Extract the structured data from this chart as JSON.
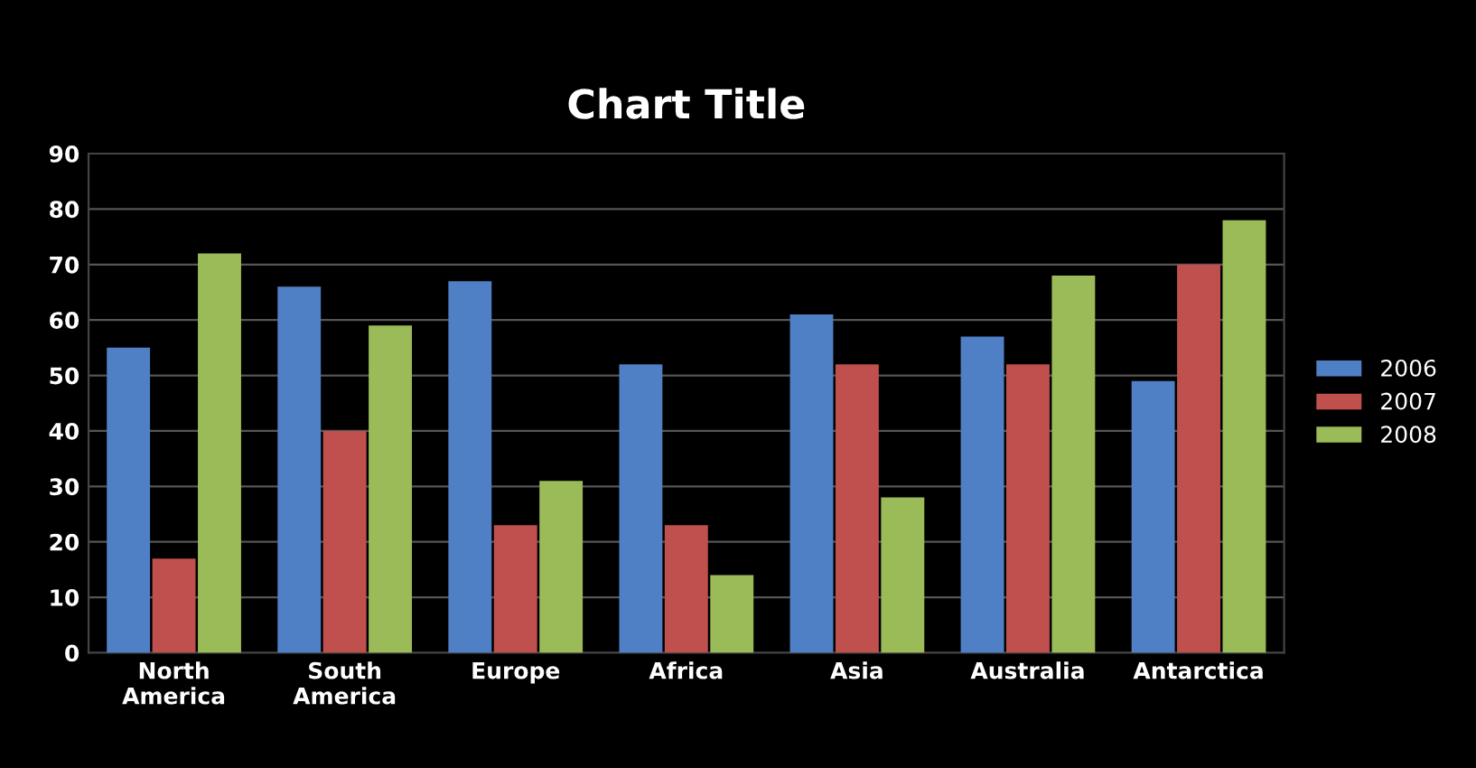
{
  "chart_data": {
    "type": "bar",
    "title": "Chart Title",
    "categories": [
      "North\nAmerica",
      "South\nAmerica",
      "Europe",
      "Africa",
      "Asia",
      "Australia",
      "Antarctica"
    ],
    "series": [
      {
        "name": "2006",
        "color": "#4f7fc4",
        "values": [
          55,
          66,
          67,
          52,
          61,
          57,
          49
        ]
      },
      {
        "name": "2007",
        "color": "#c0504d",
        "values": [
          17,
          40,
          23,
          23,
          52,
          52,
          70
        ]
      },
      {
        "name": "2008",
        "color": "#9bbb59",
        "values": [
          72,
          59,
          31,
          14,
          28,
          68,
          78
        ]
      }
    ],
    "ylim": [
      0,
      90
    ],
    "yticks": [
      0,
      10,
      20,
      30,
      40,
      50,
      60,
      70,
      80,
      90
    ],
    "grid": "y",
    "legend": "right"
  }
}
